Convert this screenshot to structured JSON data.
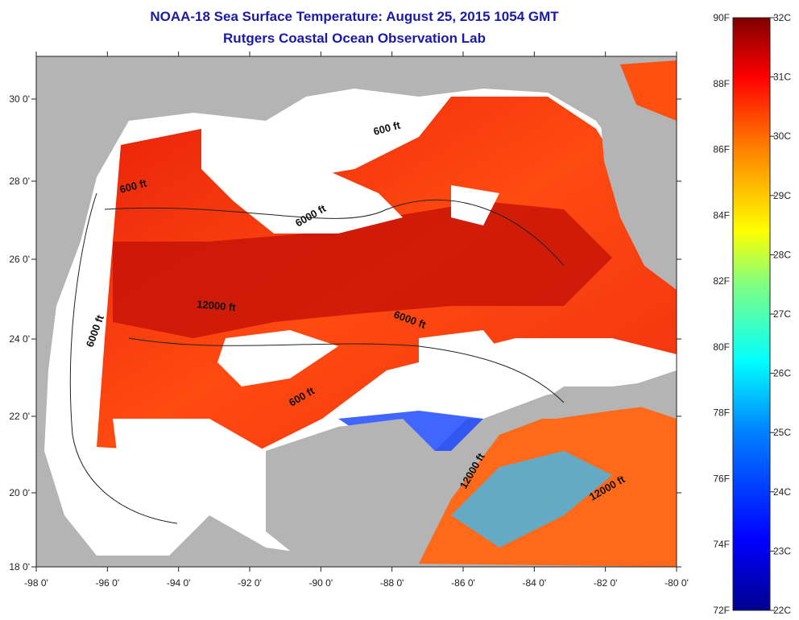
{
  "header": {
    "title": "NOAA-18 Sea Surface Temperature:  August 25, 2015 1054 GMT",
    "subtitle": "Rutgers Coastal Ocean Observation Lab"
  },
  "map": {
    "longitude_labels": [
      "-98 0'",
      "-96 0'",
      "-94 0'",
      "-92 0'",
      "-90 0'",
      "-88 0'",
      "-86 0'",
      "-84 0'",
      "-82 0'",
      "-80 0'"
    ],
    "latitude_labels": [
      "30 0'",
      "28 0'",
      "26 0'",
      "24 0'",
      "22 0'",
      "20 0'",
      "18 0'"
    ],
    "contour_labels": [
      "600 ft",
      "600 ft",
      "6000 ft",
      "12000 ft",
      "6000 ft",
      "6000 ft",
      "600 ft",
      "12000 ft",
      "12000 ft"
    ],
    "colors": {
      "land": "#b4b4b4",
      "cloud": "#ffffff"
    }
  },
  "colorbar": {
    "fahrenheit_labels": [
      "90F",
      "88F",
      "86F",
      "84F",
      "82F",
      "80F",
      "78F",
      "76F",
      "74F",
      "72F"
    ],
    "celsius_labels": [
      "32C",
      "31C",
      "30C",
      "29C",
      "28C",
      "27C",
      "26C",
      "25C",
      "24C",
      "23C",
      "22C"
    ],
    "colors": [
      "#00008f",
      "#0000ff",
      "#0080ff",
      "#00ffff",
      "#80ff80",
      "#ffff00",
      "#ff8000",
      "#ff0000",
      "#800000"
    ]
  }
}
